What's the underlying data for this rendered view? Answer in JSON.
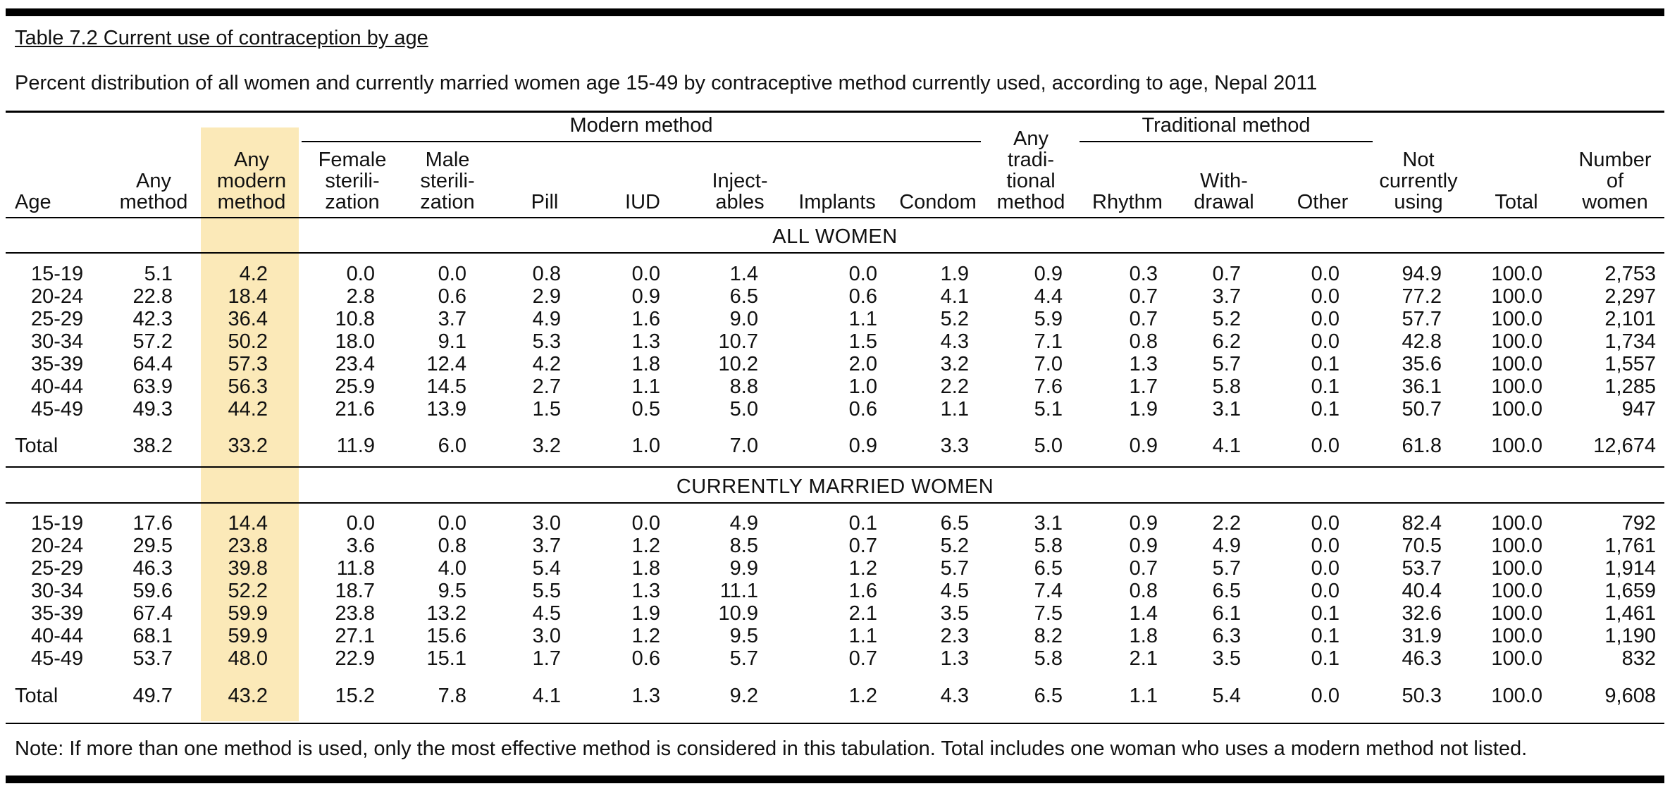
{
  "document": {
    "caption": "Table 7.2  Current use of contraception by age",
    "subtitle": "Percent distribution of all women and currently married women age 15-49 by contraceptive method currently used, according to age, Nepal 2011",
    "note": "Note: If more than one method is used, only the most effective method is considered in this tabulation. Total includes one woman who uses a modern method not listed."
  },
  "table": {
    "group_modern": "Modern method",
    "group_traditional": "Traditional method",
    "columns": [
      [
        "Age"
      ],
      [
        "Any",
        "method"
      ],
      [
        "Any",
        "modern",
        "method"
      ],
      [
        "Female",
        "sterili-",
        "zation"
      ],
      [
        "Male",
        "sterili-",
        "zation"
      ],
      [
        "Pill"
      ],
      [
        "IUD"
      ],
      [
        "Inject-",
        "ables"
      ],
      [
        "Implants"
      ],
      [
        "Condom"
      ],
      [
        "Any",
        "tradi-",
        "tional",
        "method"
      ],
      [
        "Rhythm"
      ],
      [
        "With-",
        "drawal"
      ],
      [
        "Other"
      ],
      [
        "Not",
        "currently",
        "using"
      ],
      [
        "Total"
      ],
      [
        "Number",
        "of",
        "women"
      ]
    ],
    "sections": [
      {
        "title": "ALL WOMEN",
        "rows": [
          [
            "15-19",
            "5.1",
            "4.2",
            "0.0",
            "0.0",
            "0.8",
            "0.0",
            "1.4",
            "0.0",
            "1.9",
            "0.9",
            "0.3",
            "0.7",
            "0.0",
            "94.9",
            "100.0",
            "2,753"
          ],
          [
            "20-24",
            "22.8",
            "18.4",
            "2.8",
            "0.6",
            "2.9",
            "0.9",
            "6.5",
            "0.6",
            "4.1",
            "4.4",
            "0.7",
            "3.7",
            "0.0",
            "77.2",
            "100.0",
            "2,297"
          ],
          [
            "25-29",
            "42.3",
            "36.4",
            "10.8",
            "3.7",
            "4.9",
            "1.6",
            "9.0",
            "1.1",
            "5.2",
            "5.9",
            "0.7",
            "5.2",
            "0.0",
            "57.7",
            "100.0",
            "2,101"
          ],
          [
            "30-34",
            "57.2",
            "50.2",
            "18.0",
            "9.1",
            "5.3",
            "1.3",
            "10.7",
            "1.5",
            "4.3",
            "7.1",
            "0.8",
            "6.2",
            "0.0",
            "42.8",
            "100.0",
            "1,734"
          ],
          [
            "35-39",
            "64.4",
            "57.3",
            "23.4",
            "12.4",
            "4.2",
            "1.8",
            "10.2",
            "2.0",
            "3.2",
            "7.0",
            "1.3",
            "5.7",
            "0.1",
            "35.6",
            "100.0",
            "1,557"
          ],
          [
            "40-44",
            "63.9",
            "56.3",
            "25.9",
            "14.5",
            "2.7",
            "1.1",
            "8.8",
            "1.0",
            "2.2",
            "7.6",
            "1.7",
            "5.8",
            "0.1",
            "36.1",
            "100.0",
            "1,285"
          ],
          [
            "45-49",
            "49.3",
            "44.2",
            "21.6",
            "13.9",
            "1.5",
            "0.5",
            "5.0",
            "0.6",
            "1.1",
            "5.1",
            "1.9",
            "3.1",
            "0.1",
            "50.7",
            "100.0",
            "947"
          ]
        ],
        "total": [
          "Total",
          "38.2",
          "33.2",
          "11.9",
          "6.0",
          "3.2",
          "1.0",
          "7.0",
          "0.9",
          "3.3",
          "5.0",
          "0.9",
          "4.1",
          "0.0",
          "61.8",
          "100.0",
          "12,674"
        ]
      },
      {
        "title": "CURRENTLY MARRIED WOMEN",
        "rows": [
          [
            "15-19",
            "17.6",
            "14.4",
            "0.0",
            "0.0",
            "3.0",
            "0.0",
            "4.9",
            "0.1",
            "6.5",
            "3.1",
            "0.9",
            "2.2",
            "0.0",
            "82.4",
            "100.0",
            "792"
          ],
          [
            "20-24",
            "29.5",
            "23.8",
            "3.6",
            "0.8",
            "3.7",
            "1.2",
            "8.5",
            "0.7",
            "5.2",
            "5.8",
            "0.9",
            "4.9",
            "0.0",
            "70.5",
            "100.0",
            "1,761"
          ],
          [
            "25-29",
            "46.3",
            "39.8",
            "11.8",
            "4.0",
            "5.4",
            "1.8",
            "9.9",
            "1.2",
            "5.7",
            "6.5",
            "0.7",
            "5.7",
            "0.0",
            "53.7",
            "100.0",
            "1,914"
          ],
          [
            "30-34",
            "59.6",
            "52.2",
            "18.7",
            "9.5",
            "5.5",
            "1.3",
            "11.1",
            "1.6",
            "4.5",
            "7.4",
            "0.8",
            "6.5",
            "0.0",
            "40.4",
            "100.0",
            "1,659"
          ],
          [
            "35-39",
            "67.4",
            "59.9",
            "23.8",
            "13.2",
            "4.5",
            "1.9",
            "10.9",
            "2.1",
            "3.5",
            "7.5",
            "1.4",
            "6.1",
            "0.1",
            "32.6",
            "100.0",
            "1,461"
          ],
          [
            "40-44",
            "68.1",
            "59.9",
            "27.1",
            "15.6",
            "3.0",
            "1.2",
            "9.5",
            "1.1",
            "2.3",
            "8.2",
            "1.8",
            "6.3",
            "0.1",
            "31.9",
            "100.0",
            "1,190"
          ],
          [
            "45-49",
            "53.7",
            "48.0",
            "22.9",
            "15.1",
            "1.7",
            "0.6",
            "5.7",
            "0.7",
            "1.3",
            "5.8",
            "2.1",
            "3.5",
            "0.1",
            "46.3",
            "100.0",
            "832"
          ]
        ],
        "total": [
          "Total",
          "49.7",
          "43.2",
          "15.2",
          "7.8",
          "4.1",
          "1.3",
          "9.2",
          "1.2",
          "4.3",
          "6.5",
          "1.1",
          "5.4",
          "0.0",
          "50.3",
          "100.0",
          "9,608"
        ]
      }
    ]
  }
}
